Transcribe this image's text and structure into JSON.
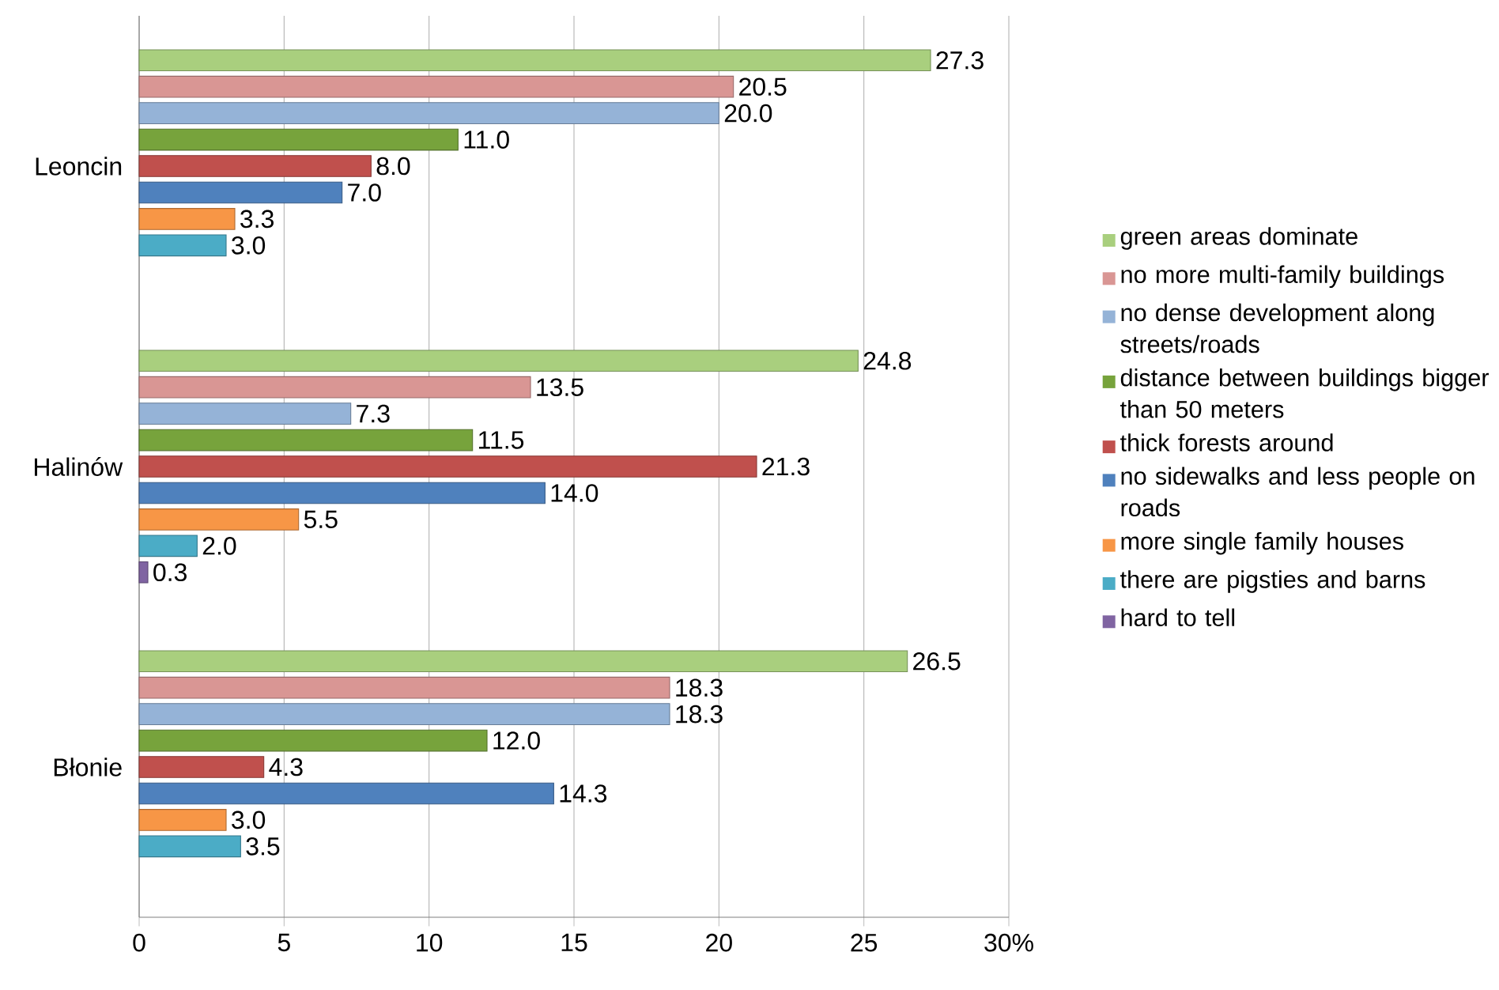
{
  "chart_data": {
    "type": "bar",
    "orientation": "horizontal",
    "categories": [
      "Leoncin",
      "Halinów",
      "Błonie"
    ],
    "series": [
      {
        "name": "green areas dominate",
        "color": "#a9cf7e",
        "values": [
          27.3,
          24.8,
          26.5
        ],
        "value_labels": [
          "27.3",
          "24.8",
          "26.5"
        ]
      },
      {
        "name": "no more multi-family buildings",
        "color": "#d99694",
        "values": [
          20.5,
          13.5,
          18.3
        ],
        "value_labels": [
          "20.5",
          "13.5",
          "18.3"
        ]
      },
      {
        "name": "no dense development along streets/roads",
        "color": "#95b3d7",
        "values": [
          20.0,
          7.3,
          18.3
        ],
        "value_labels": [
          "20.0",
          "7.3",
          "18.3"
        ]
      },
      {
        "name": "distance between buildings bigger than 50 meters",
        "color": "#77a33c",
        "values": [
          11.0,
          11.5,
          12.0
        ],
        "value_labels": [
          "11.0",
          "11.5",
          "12.0"
        ]
      },
      {
        "name": "thick forests around",
        "color": "#c0504d",
        "values": [
          8.0,
          21.3,
          4.3
        ],
        "value_labels": [
          "8.0",
          "21.3",
          "4.3"
        ]
      },
      {
        "name": "no sidewalks and less people on roads",
        "color": "#4f81bd",
        "values": [
          7.0,
          14.0,
          14.3
        ],
        "value_labels": [
          "7.0",
          "14.0",
          "14.3"
        ]
      },
      {
        "name": "more single family houses",
        "color": "#f79646",
        "values": [
          3.3,
          5.5,
          3.0
        ],
        "value_labels": [
          "3.3",
          "5.5",
          "3.0"
        ]
      },
      {
        "name": "there are pigsties and barns",
        "color": "#4bacc6",
        "values": [
          3.0,
          2.0,
          3.5
        ],
        "value_labels": [
          "3.0",
          "2.0",
          "3.5"
        ]
      },
      {
        "name": "hard to tell",
        "color": "#8064a2",
        "values": [
          null,
          0.3,
          null
        ],
        "value_labels": [
          null,
          "0.3",
          null
        ]
      }
    ],
    "xlim": [
      0,
      30
    ],
    "xticks": [
      0,
      5,
      10,
      15,
      20,
      25,
      {
        "value": 30,
        "label": "30%"
      }
    ],
    "grid": "x",
    "legend": "right"
  }
}
